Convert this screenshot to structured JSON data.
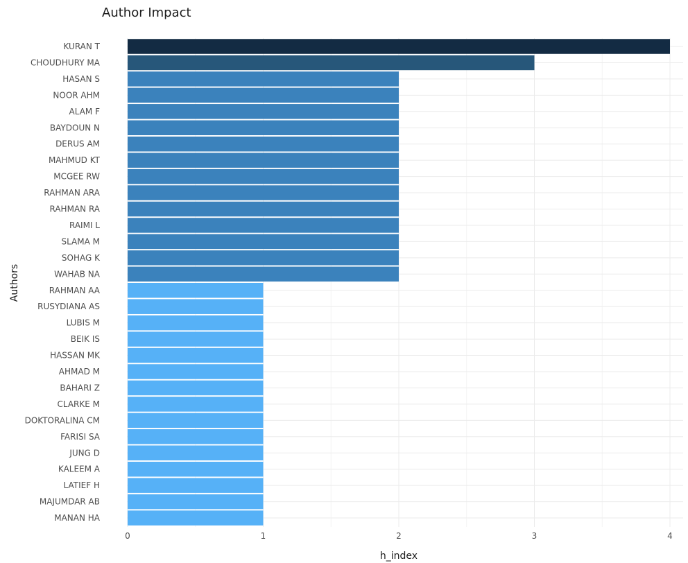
{
  "chart_data": {
    "type": "bar",
    "orientation": "horizontal",
    "title": "Author Impact",
    "xlabel": "h_index",
    "ylabel": "Authors",
    "xlim": [
      0,
      4.05
    ],
    "x_ticks": [
      0,
      1,
      2,
      3,
      4
    ],
    "grid": true,
    "legend": "none",
    "colors": {
      "4": "#132b43",
      "3": "#27577a",
      "2": "#3b82bc",
      "1": "#56b1f7",
      "grid": "#ebebeb"
    },
    "categories": [
      "KURAN T",
      "CHOUDHURY MA",
      "HASAN S",
      "NOOR AHM",
      "ALAM F",
      "BAYDOUN N",
      "DERUS AM",
      "MAHMUD KT",
      "MCGEE RW",
      "RAHMAN ARA",
      "RAHMAN RA",
      "RAIMI L",
      "SLAMA M",
      "SOHAG K",
      "WAHAB NA",
      "RAHMAN AA",
      "RUSYDIANA AS",
      "LUBIS M",
      "BEIK IS",
      "HASSAN MK",
      "AHMAD M",
      "BAHARI Z",
      "CLARKE M",
      "DOKTORALINA CM",
      "FARISI SA",
      "JUNG D",
      "KALEEM A",
      "LATIEF H",
      "MAJUMDAR AB",
      "MANAN HA"
    ],
    "values": [
      4,
      3,
      2,
      2,
      2,
      2,
      2,
      2,
      2,
      2,
      2,
      2,
      2,
      2,
      2,
      1,
      1,
      1,
      1,
      1,
      1,
      1,
      1,
      1,
      1,
      1,
      1,
      1,
      1,
      1
    ]
  }
}
